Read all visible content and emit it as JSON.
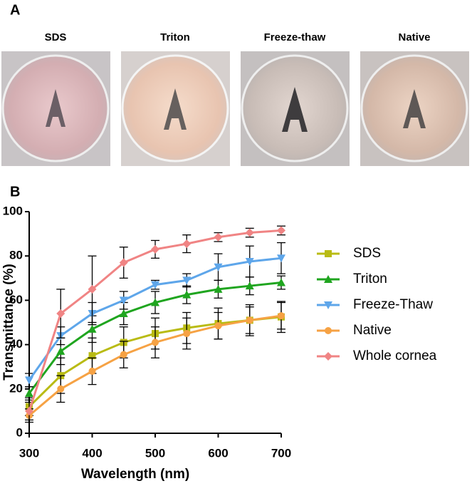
{
  "panel_labels": [
    "A",
    "B"
  ],
  "photos": {
    "labels": [
      "SDS",
      "Triton",
      "Freeze-thaw",
      "Native"
    ]
  },
  "chart_data": {
    "type": "line",
    "xlabel": "Wavelength (nm)",
    "ylabel": "Transmittance (%)",
    "x": [
      300,
      350,
      400,
      450,
      500,
      550,
      600,
      650,
      700
    ],
    "xlim": [
      300,
      700
    ],
    "xticks": [
      300,
      400,
      500,
      600,
      700
    ],
    "ylim": [
      0,
      100
    ],
    "yticks": [
      0,
      20,
      40,
      60,
      80,
      100
    ],
    "series": [
      {
        "name": "SDS",
        "color": "#b9bb14",
        "marker": "square",
        "values": [
          12,
          26,
          35,
          41,
          45,
          47.5,
          49.5,
          51,
          52.5
        ],
        "errors": [
          4,
          8,
          8,
          7,
          7,
          7,
          7,
          7,
          7
        ]
      },
      {
        "name": "Triton",
        "color": "#1fa51f",
        "marker": "triangle-up",
        "values": [
          18,
          37,
          47,
          54,
          59,
          62.5,
          65,
          66.5,
          68
        ],
        "errors": [
          3,
          6,
          6,
          5,
          5,
          4,
          4,
          4,
          3
        ]
      },
      {
        "name": "Freeze-Thaw",
        "color": "#5ea6ea",
        "marker": "triangle-down",
        "values": [
          24,
          44,
          54,
          60,
          67,
          69,
          75,
          77.5,
          79
        ],
        "errors": [
          3,
          4,
          5,
          4,
          2,
          3,
          6,
          7,
          7
        ]
      },
      {
        "name": "Native",
        "color": "#f6a244",
        "marker": "circle",
        "values": [
          8,
          20,
          28,
          35.5,
          41,
          45,
          48.5,
          51,
          53
        ],
        "errors": [
          3,
          6,
          6,
          6,
          7,
          7,
          6,
          6,
          6
        ]
      },
      {
        "name": "Whole cornea",
        "color": "#f08484",
        "marker": "diamond",
        "values": [
          10,
          54,
          65,
          77,
          83,
          85.5,
          88.5,
          90.5,
          91.5
        ],
        "errors": [
          4,
          11,
          15,
          7,
          4,
          4,
          2,
          2,
          2
        ]
      }
    ]
  }
}
